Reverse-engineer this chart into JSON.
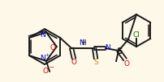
{
  "bg_color": "#fdf8e8",
  "bond_color": "#1a1a1a",
  "atom_colors": {
    "O": "#dd0000",
    "N": "#0000cc",
    "S": "#cc8800",
    "Cl": "#007700",
    "C": "#1a1a1a",
    "H": "#1a1a1a"
  },
  "figsize": [
    2.03,
    1.02
  ],
  "dpi": 100
}
